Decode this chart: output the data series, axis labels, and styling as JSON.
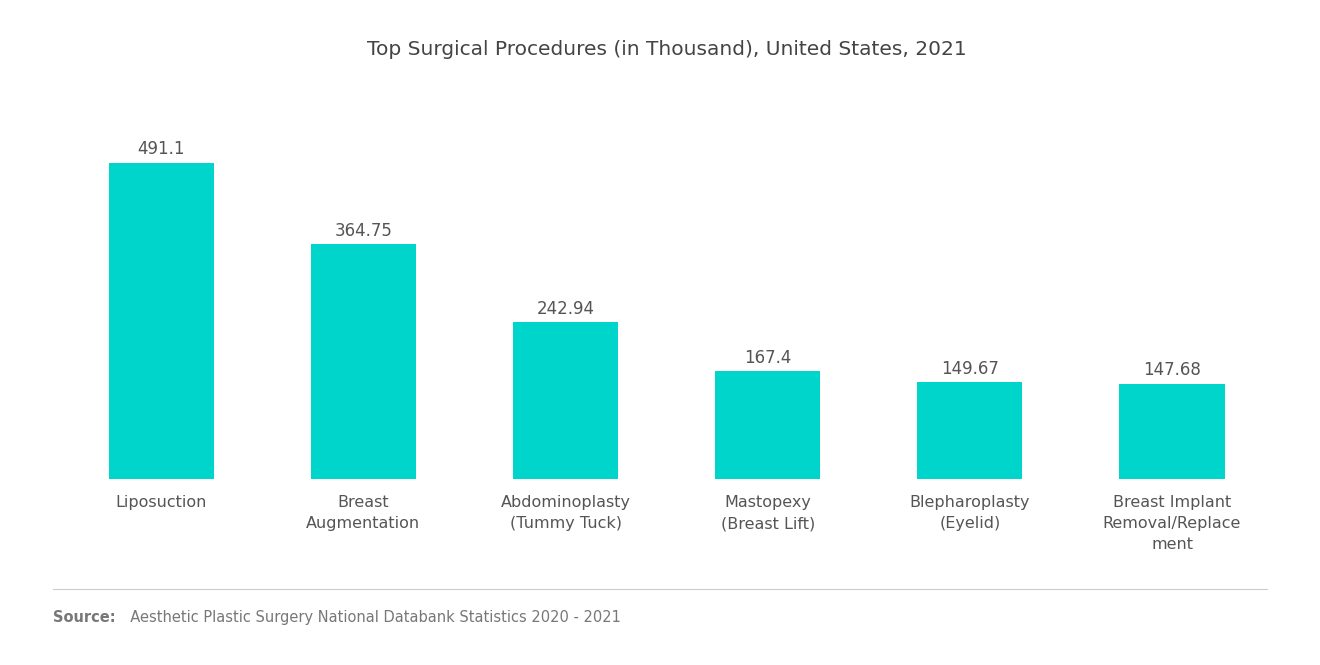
{
  "title": "Top Surgical Procedures (in Thousand), United States, 2021",
  "categories": [
    "Liposuction",
    "Breast\nAugmentation",
    "Abdominoplasty\n(Tummy Tuck)",
    "Mastopexy\n(Breast Lift)",
    "Blepharoplasty\n(Eyelid)",
    "Breast Implant\nRemoval/Replace\nment"
  ],
  "values": [
    491.1,
    364.75,
    242.94,
    167.4,
    149.67,
    147.68
  ],
  "bar_color": "#00D5CB",
  "value_labels": [
    "491.1",
    "364.75",
    "242.94",
    "167.4",
    "149.67",
    "147.68"
  ],
  "source_bold": "Source:",
  "source_text": "  Aesthetic Plastic Surgery National Databank Statistics 2020 - 2021",
  "background_color": "#ffffff",
  "title_fontsize": 14.5,
  "label_fontsize": 11.5,
  "value_fontsize": 12,
  "source_fontsize": 10.5,
  "ylim": [
    0,
    620
  ],
  "bar_width": 0.52
}
